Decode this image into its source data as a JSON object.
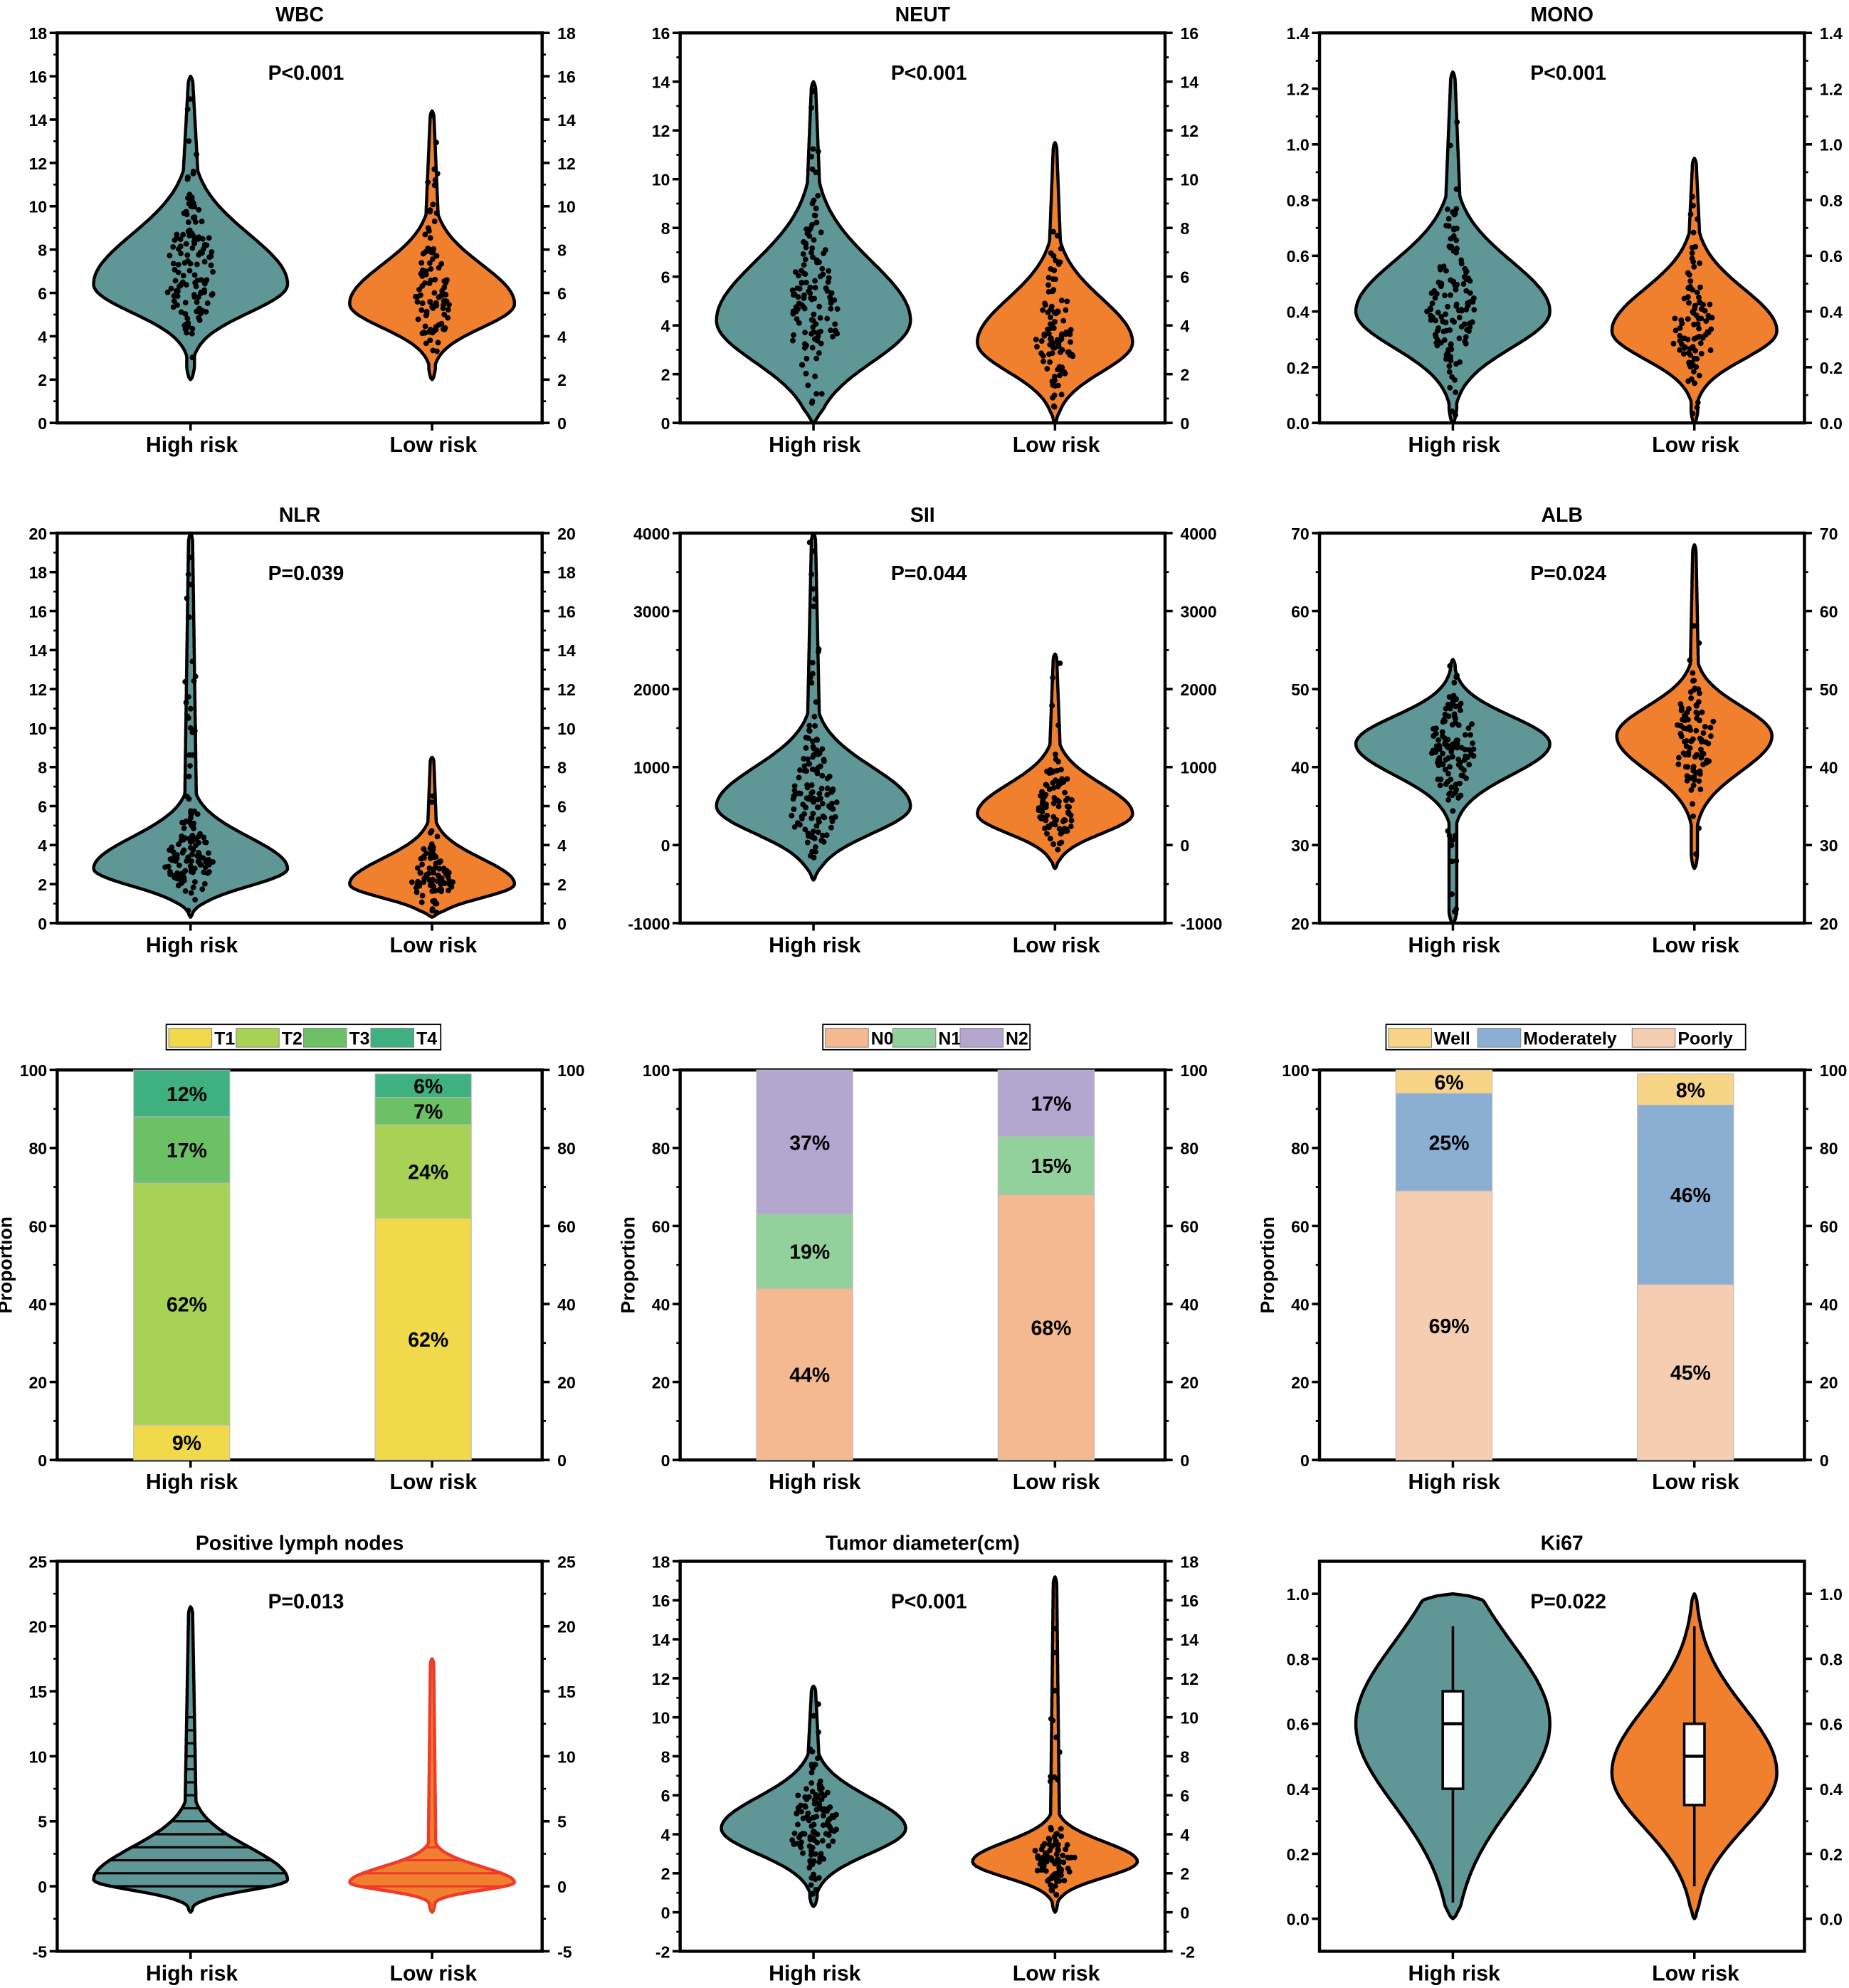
{
  "groups": [
    "High risk",
    "Low risk"
  ],
  "colors": {
    "high": "#5f9696",
    "low": "#f07f2e",
    "low_lymph": "#f07f2e",
    "low_lymph_stroke": "#ee3b2a",
    "box": "#ffffff",
    "axis": "#000000"
  },
  "y_axis_label": "Proportion",
  "chart_data": [
    {
      "type": "violin",
      "title": "WBC",
      "p_value": "P<0.001",
      "ylim": [
        0,
        18
      ],
      "yticks": [
        "0",
        "2",
        "4",
        "6",
        "8",
        "10",
        "12",
        "14",
        "16",
        "18"
      ],
      "points": true,
      "series": [
        {
          "name": "High risk",
          "min": 2,
          "max": 16,
          "mode": 6.4,
          "sd_low": 1.3,
          "sd_high": 2.3,
          "tail": 0.12,
          "relative_width": 1,
          "n": 130
        },
        {
          "name": "Low risk",
          "min": 2,
          "max": 14.4,
          "mode": 5.5,
          "sd_low": 1.1,
          "sd_high": 1.8,
          "tail": 0.1,
          "relative_width": 0.85,
          "n": 95
        }
      ]
    },
    {
      "type": "violin",
      "title": "NEUT",
      "p_value": "P<0.001",
      "ylim": [
        0,
        16
      ],
      "yticks": [
        "0",
        "2",
        "4",
        "6",
        "8",
        "10",
        "12",
        "14",
        "16"
      ],
      "points": true,
      "series": [
        {
          "name": "High risk",
          "min": 0,
          "max": 14,
          "mode": 4.2,
          "sd_low": 1.7,
          "sd_high": 2.4,
          "tail": 0.1,
          "relative_width": 1,
          "n": 130
        },
        {
          "name": "Low risk",
          "min": 0,
          "max": 11.5,
          "mode": 3.3,
          "sd_low": 1.2,
          "sd_high": 1.8,
          "tail": 0.1,
          "relative_width": 0.8,
          "n": 95
        }
      ]
    },
    {
      "type": "violin",
      "title": "MONO",
      "p_value": "P<0.001",
      "ylim": [
        0,
        1.4
      ],
      "yticks": [
        "0.0",
        "0.2",
        "0.4",
        "0.6",
        "0.8",
        "1.0",
        "1.2",
        "1.4"
      ],
      "points": true,
      "series": [
        {
          "name": "High risk",
          "min": 0,
          "max": 1.26,
          "mode": 0.4,
          "sd_low": 0.13,
          "sd_high": 0.18,
          "tail": 0.1,
          "relative_width": 1,
          "n": 130
        },
        {
          "name": "Low risk",
          "min": 0,
          "max": 0.95,
          "mode": 0.33,
          "sd_low": 0.1,
          "sd_high": 0.15,
          "tail": 0.1,
          "relative_width": 0.85,
          "n": 95
        }
      ]
    },
    {
      "type": "violin",
      "title": "NLR",
      "p_value": "P=0.039",
      "ylim": [
        0,
        20
      ],
      "yticks": [
        "0",
        "2",
        "4",
        "6",
        "8",
        "10",
        "12",
        "14",
        "16",
        "18",
        "20"
      ],
      "points": true,
      "series": [
        {
          "name": "High risk",
          "min": 0.3,
          "max": 20,
          "mode": 2.8,
          "sd_low": 0.9,
          "sd_high": 1.6,
          "tail": 0.05,
          "relative_width": 1,
          "n": 130
        },
        {
          "name": "Low risk",
          "min": 0.3,
          "max": 8.5,
          "mode": 2,
          "sd_low": 0.7,
          "sd_high": 1.3,
          "tail": 0.06,
          "relative_width": 0.85,
          "n": 95
        }
      ]
    },
    {
      "type": "violin",
      "title": "SII",
      "p_value": "P=0.044",
      "ylim": [
        -1000,
        4000
      ],
      "yticks": [
        "-1000",
        "0",
        "1000",
        "2000",
        "3000",
        "4000"
      ],
      "points": true,
      "series": [
        {
          "name": "High risk",
          "min": -450,
          "max": 4000,
          "mode": 500,
          "sd_low": 350,
          "sd_high": 500,
          "tail": 0.06,
          "relative_width": 1,
          "n": 130
        },
        {
          "name": "Low risk",
          "min": -300,
          "max": 2450,
          "mode": 400,
          "sd_low": 250,
          "sd_high": 380,
          "tail": 0.08,
          "relative_width": 0.8,
          "n": 95
        }
      ]
    },
    {
      "type": "violin",
      "title": "ALB",
      "p_value": "P=0.024",
      "ylim": [
        20,
        70
      ],
      "yticks": [
        "20",
        "30",
        "40",
        "50",
        "60",
        "70"
      ],
      "points": true,
      "series": [
        {
          "name": "High risk",
          "min": 20,
          "max": 53.8,
          "mode": 43,
          "sd_low": 4,
          "sd_high": 3.5,
          "tail": 0.05,
          "relative_width": 1,
          "n": 130
        },
        {
          "name": "Low risk",
          "min": 27,
          "max": 68.5,
          "mode": 44,
          "sd_low": 4.5,
          "sd_high": 3.8,
          "tail": 0.05,
          "relative_width": 0.8,
          "n": 95
        }
      ]
    },
    {
      "type": "stacked_bar",
      "categories": [
        "High risk",
        "Low risk"
      ],
      "ylim": [
        0,
        100
      ],
      "yticks": [
        "0",
        "20",
        "40",
        "60",
        "80",
        "100"
      ],
      "ylabel": "Proportion",
      "series": [
        {
          "name": "T1",
          "color": "#f0da4b",
          "values": [
            9,
            62
          ],
          "labels": [
            "9%",
            "62%"
          ]
        },
        {
          "name": "T2",
          "color": "#a8d255",
          "values": [
            62,
            24
          ],
          "labels": [
            "62%",
            "24%"
          ]
        },
        {
          "name": "T3",
          "color": "#6cc065",
          "values": [
            17,
            7
          ],
          "labels": [
            "17%",
            "7%"
          ]
        },
        {
          "name": "T4",
          "color": "#3fb07f",
          "values": [
            12,
            6
          ],
          "labels": [
            "12%",
            "6%"
          ]
        }
      ]
    },
    {
      "type": "stacked_bar",
      "categories": [
        "High risk",
        "Low risk"
      ],
      "ylim": [
        0,
        100
      ],
      "yticks": [
        "0",
        "20",
        "40",
        "60",
        "80",
        "100"
      ],
      "ylabel": "Proportion",
      "series": [
        {
          "name": "N0",
          "color": "#f4b990",
          "values": [
            44,
            68
          ],
          "labels": [
            "44%",
            "68%"
          ]
        },
        {
          "name": "N1",
          "color": "#93d19c",
          "values": [
            19,
            15
          ],
          "labels": [
            "19%",
            "15%"
          ]
        },
        {
          "name": "N2",
          "color": "#b3a6cf",
          "values": [
            37,
            17
          ],
          "labels": [
            "37%",
            "17%"
          ]
        }
      ]
    },
    {
      "type": "stacked_bar",
      "categories": [
        "High risk",
        "Low risk"
      ],
      "ylim": [
        0,
        100
      ],
      "yticks": [
        "0",
        "20",
        "40",
        "60",
        "80",
        "100"
      ],
      "ylabel": "Proportion",
      "legend_order": [
        "Well",
        "Moderately",
        "Poorly"
      ],
      "series": [
        {
          "name": "Poorly",
          "color": "#f5cdb1",
          "values": [
            69,
            45
          ],
          "labels": [
            "69%",
            "45%"
          ]
        },
        {
          "name": "Moderately",
          "color": "#8aafd2",
          "values": [
            25,
            46
          ],
          "labels": [
            "25%",
            "46%"
          ]
        },
        {
          "name": "Well",
          "color": "#f8d586",
          "values": [
            6,
            8
          ],
          "labels": [
            "6%",
            "8%"
          ]
        }
      ]
    },
    {
      "type": "violin",
      "title": "Positive lymph nodes",
      "p_value": "P=0.013",
      "ylim": [
        -5,
        25
      ],
      "yticks": [
        "-5",
        "0",
        "5",
        "10",
        "15",
        "20",
        "25"
      ],
      "points": false,
      "stripes": true,
      "series": [
        {
          "name": "High risk",
          "min": -2,
          "max": 21.5,
          "mode": 0.5,
          "sd_low": 0.8,
          "sd_high": 2.5,
          "tail": 0.05,
          "relative_width": 1
        },
        {
          "name": "Low risk",
          "min": -2,
          "max": 17.5,
          "mode": 0.3,
          "sd_low": 0.6,
          "sd_high": 1.2,
          "tail": 0.03,
          "relative_width": 0.85
        }
      ]
    },
    {
      "type": "violin",
      "title": "Tumor diameter(cm)",
      "p_value": "P<0.001",
      "ylim": [
        -2,
        18
      ],
      "yticks": [
        "-2",
        "0",
        "2",
        "4",
        "6",
        "8",
        "10",
        "12",
        "14",
        "16",
        "18"
      ],
      "points": true,
      "series": [
        {
          "name": "High risk",
          "min": 0.3,
          "max": 11.6,
          "mode": 4.3,
          "sd_low": 1.3,
          "sd_high": 1.6,
          "tail": 0.08,
          "relative_width": 0.95,
          "n": 130
        },
        {
          "name": "Low risk",
          "min": 0,
          "max": 17.2,
          "mode": 2.6,
          "sd_low": 0.8,
          "sd_high": 1.0,
          "tail": 0.04,
          "relative_width": 0.85,
          "n": 95
        }
      ]
    },
    {
      "type": "violin",
      "title": "Ki67",
      "p_value": "P=0.022",
      "ylim": [
        -0.1,
        1.1
      ],
      "yticks": [
        "0.0",
        "0.2",
        "0.4",
        "0.6",
        "0.8",
        "1.0"
      ],
      "points": false,
      "series": [
        {
          "name": "High risk",
          "min": 0,
          "max": 1,
          "mode": 0.6,
          "sd_low": 0.25,
          "sd_high": 0.25,
          "tail": 0.0,
          "relative_width": 1,
          "box": {
            "whisker_low": 0.05,
            "q1": 0.4,
            "median": 0.6,
            "q3": 0.7,
            "whisker_high": 0.9
          }
        },
        {
          "name": "Low risk",
          "min": 0,
          "max": 1,
          "mode": 0.45,
          "sd_low": 0.17,
          "sd_high": 0.2,
          "tail": 0.0,
          "relative_width": 0.85,
          "box": {
            "whisker_low": 0.1,
            "q1": 0.35,
            "median": 0.5,
            "q3": 0.6,
            "whisker_high": 0.9
          }
        }
      ]
    }
  ]
}
